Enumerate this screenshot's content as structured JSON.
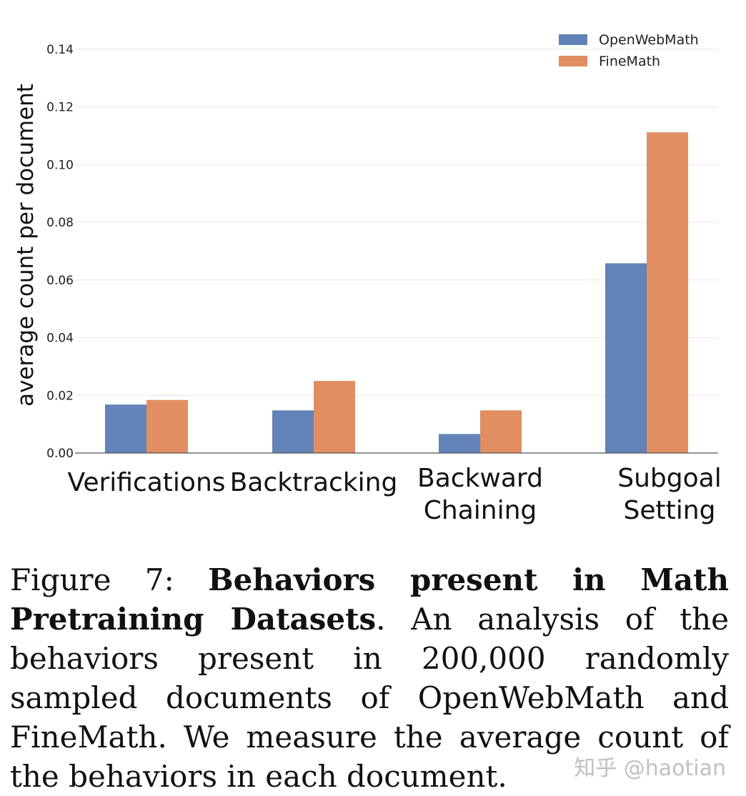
{
  "chart_data": {
    "type": "bar",
    "categories": [
      [
        "Verifications"
      ],
      [
        "Backtracking"
      ],
      [
        "Backward",
        "Chaining"
      ],
      [
        "Subgoal",
        "Setting"
      ]
    ],
    "series": [
      {
        "name": "OpenWebMath",
        "color": "#6283b8",
        "values": [
          0.0168,
          0.0148,
          0.0066,
          0.0658
        ]
      },
      {
        "name": "FineMath",
        "color": "#e08e62",
        "values": [
          0.0184,
          0.025,
          0.0148,
          0.1112
        ]
      }
    ],
    "ylabel": "average count per document",
    "xlabel": "",
    "ylim": [
      0,
      0.14
    ],
    "yticks": [
      0.0,
      0.02,
      0.04,
      0.06,
      0.08,
      0.1,
      0.12,
      0.14
    ],
    "grid": true,
    "legend": "top-right"
  },
  "caption": {
    "label": "Figure 7:",
    "title": "Behaviors present in Math Pretraining Datasets",
    "body": ". An analysis of the behaviors present in 200,000 randomly sampled documents of OpenWebMath and FineMath. We measure the average count of the behaviors in each document."
  },
  "watermark": "知乎 @haotian"
}
